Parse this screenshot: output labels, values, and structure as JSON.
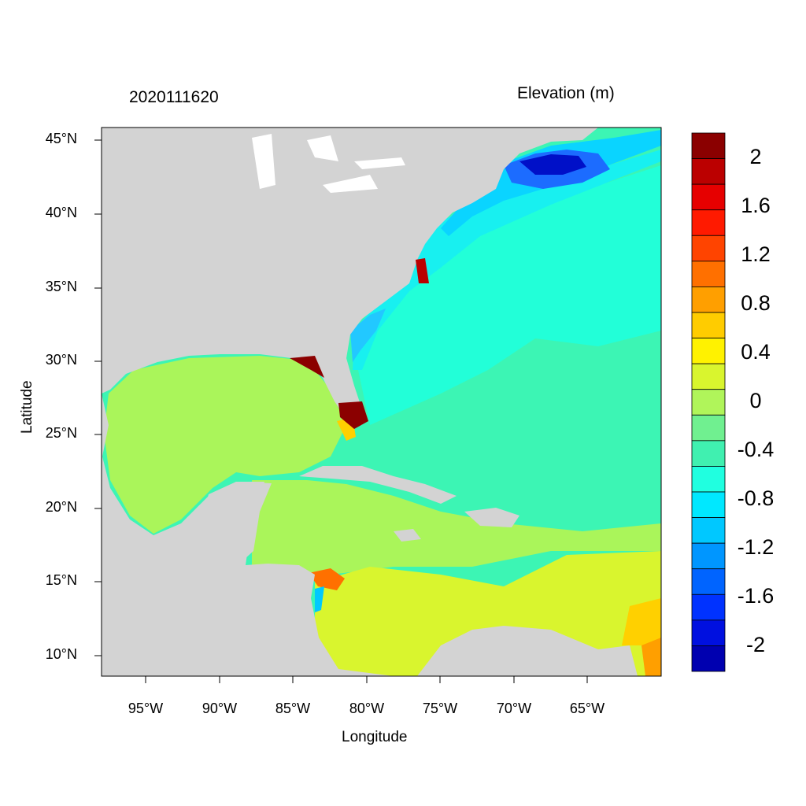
{
  "header": {
    "timestamp": "2020111620",
    "variable": "Elevation (m)"
  },
  "axes": {
    "xlabel": "Longitude",
    "ylabel": "Latitude",
    "xticks": [
      "95°W",
      "90°W",
      "85°W",
      "80°W",
      "75°W",
      "70°W",
      "65°W"
    ],
    "yticks": [
      "45°N",
      "40°N",
      "35°N",
      "30°N",
      "25°N",
      "20°N",
      "15°N",
      "10°N"
    ],
    "lon_range": [
      -98,
      -60.2
    ],
    "lat_range": [
      8.6,
      45.8
    ]
  },
  "colorbar": {
    "labels": [
      "2",
      "1.6",
      "1.2",
      "0.8",
      "0.4",
      "0",
      "-0.4",
      "-0.8",
      "-1.2",
      "-1.6",
      "-2"
    ],
    "colors": [
      "#8b0000",
      "#bb0000",
      "#e60000",
      "#ff1a00",
      "#ff4400",
      "#ff7000",
      "#ff9f00",
      "#ffcc00",
      "#fff200",
      "#d9f52e",
      "#b0f55a",
      "#70f090",
      "#40f0b0",
      "#20ffe0",
      "#00e8ff",
      "#00c8ff",
      "#0096ff",
      "#0064ff",
      "#0032ff",
      "#0010e0",
      "#0000b0"
    ],
    "colors_note": "top to bottom"
  },
  "map_colors": {
    "land": "#d3d3d3",
    "ocean_background": "#3ff0c0"
  }
}
